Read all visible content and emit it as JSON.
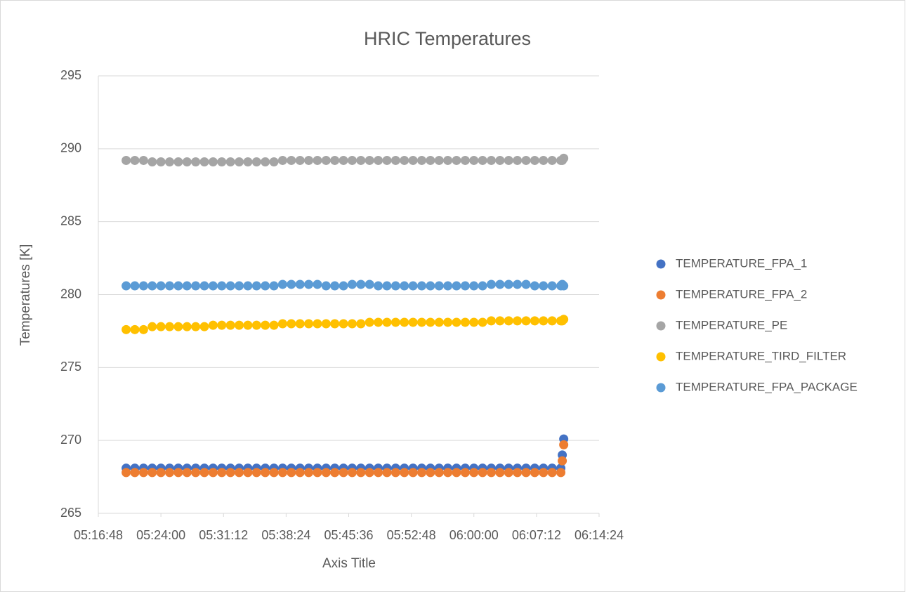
{
  "chart_data": {
    "type": "scatter",
    "title": "HRIC Temperatures",
    "xlabel": "Axis Title",
    "ylabel": "Temperatures [K]",
    "x": [
      "05:20:00",
      "05:21:00",
      "05:22:00",
      "05:23:00",
      "05:24:00",
      "05:25:00",
      "05:26:00",
      "05:27:00",
      "05:28:00",
      "05:29:00",
      "05:30:00",
      "05:31:00",
      "05:32:00",
      "05:33:00",
      "05:34:00",
      "05:35:00",
      "05:36:00",
      "05:37:00",
      "05:38:00",
      "05:39:00",
      "05:40:00",
      "05:41:00",
      "05:42:00",
      "05:43:00",
      "05:44:00",
      "05:45:00",
      "05:46:00",
      "05:47:00",
      "05:48:00",
      "05:49:00",
      "05:50:00",
      "05:51:00",
      "05:52:00",
      "05:53:00",
      "05:54:00",
      "05:55:00",
      "05:56:00",
      "05:57:00",
      "05:58:00",
      "05:59:00",
      "06:00:00",
      "06:01:00",
      "06:02:00",
      "06:03:00",
      "06:04:00",
      "06:05:00",
      "06:06:00",
      "06:07:00",
      "06:08:00",
      "06:09:00",
      "06:10:00",
      "06:10:10",
      "06:10:20"
    ],
    "series": [
      {
        "name": "TEMPERATURE_FPA_1",
        "color": "#4472c4",
        "values": [
          268.1,
          268.1,
          268.1,
          268.1,
          268.1,
          268.1,
          268.1,
          268.1,
          268.1,
          268.1,
          268.1,
          268.1,
          268.1,
          268.1,
          268.1,
          268.1,
          268.1,
          268.1,
          268.1,
          268.1,
          268.1,
          268.1,
          268.1,
          268.1,
          268.1,
          268.1,
          268.1,
          268.1,
          268.1,
          268.1,
          268.1,
          268.1,
          268.1,
          268.1,
          268.1,
          268.1,
          268.1,
          268.1,
          268.1,
          268.1,
          268.1,
          268.1,
          268.1,
          268.1,
          268.1,
          268.1,
          268.1,
          268.1,
          268.1,
          268.1,
          268.1,
          269.0,
          270.1
        ]
      },
      {
        "name": "TEMPERATURE_FPA_2",
        "color": "#ed7d31",
        "values": [
          267.8,
          267.8,
          267.8,
          267.8,
          267.8,
          267.8,
          267.8,
          267.8,
          267.8,
          267.8,
          267.8,
          267.8,
          267.8,
          267.8,
          267.8,
          267.8,
          267.8,
          267.8,
          267.8,
          267.8,
          267.8,
          267.8,
          267.8,
          267.8,
          267.8,
          267.8,
          267.8,
          267.8,
          267.8,
          267.8,
          267.8,
          267.8,
          267.8,
          267.8,
          267.8,
          267.8,
          267.8,
          267.8,
          267.8,
          267.8,
          267.8,
          267.8,
          267.8,
          267.8,
          267.8,
          267.8,
          267.8,
          267.8,
          267.8,
          267.8,
          267.8,
          268.6,
          269.7
        ]
      },
      {
        "name": "TEMPERATURE_PE",
        "color": "#a5a5a5",
        "values": [
          289.2,
          289.2,
          289.2,
          289.1,
          289.1,
          289.1,
          289.1,
          289.1,
          289.1,
          289.1,
          289.1,
          289.1,
          289.1,
          289.1,
          289.1,
          289.1,
          289.1,
          289.1,
          289.2,
          289.2,
          289.2,
          289.2,
          289.2,
          289.2,
          289.2,
          289.2,
          289.2,
          289.2,
          289.2,
          289.2,
          289.2,
          289.2,
          289.2,
          289.2,
          289.2,
          289.2,
          289.2,
          289.2,
          289.2,
          289.2,
          289.2,
          289.2,
          289.2,
          289.2,
          289.2,
          289.2,
          289.2,
          289.2,
          289.2,
          289.2,
          289.2,
          289.2,
          289.35
        ]
      },
      {
        "name": "TEMPERATURE_TIRD_FILTER",
        "color": "#ffc000",
        "values": [
          277.6,
          277.6,
          277.6,
          277.8,
          277.8,
          277.8,
          277.8,
          277.8,
          277.8,
          277.8,
          277.9,
          277.9,
          277.9,
          277.9,
          277.9,
          277.9,
          277.9,
          277.9,
          278.0,
          278.0,
          278.0,
          278.0,
          278.0,
          278.0,
          278.0,
          278.0,
          278.0,
          278.0,
          278.1,
          278.1,
          278.1,
          278.1,
          278.1,
          278.1,
          278.1,
          278.1,
          278.1,
          278.1,
          278.1,
          278.1,
          278.1,
          278.1,
          278.2,
          278.2,
          278.2,
          278.2,
          278.2,
          278.2,
          278.2,
          278.2,
          278.2,
          278.2,
          278.3
        ]
      },
      {
        "name": "TEMPERATURE_FPA_PACKAGE",
        "color": "#5b9bd5",
        "values": [
          280.6,
          280.6,
          280.6,
          280.6,
          280.6,
          280.6,
          280.6,
          280.6,
          280.6,
          280.6,
          280.6,
          280.6,
          280.6,
          280.6,
          280.6,
          280.6,
          280.6,
          280.6,
          280.7,
          280.7,
          280.7,
          280.7,
          280.7,
          280.6,
          280.6,
          280.6,
          280.7,
          280.7,
          280.7,
          280.6,
          280.6,
          280.6,
          280.6,
          280.6,
          280.6,
          280.6,
          280.6,
          280.6,
          280.6,
          280.6,
          280.6,
          280.6,
          280.7,
          280.7,
          280.7,
          280.7,
          280.7,
          280.6,
          280.6,
          280.6,
          280.6,
          280.7,
          280.6
        ]
      }
    ],
    "xlim": [
      "05:16:48",
      "06:14:24"
    ],
    "xticks": [
      "05:16:48",
      "05:24:00",
      "05:31:12",
      "05:38:24",
      "05:45:36",
      "05:52:48",
      "06:00:00",
      "06:07:12",
      "06:14:24"
    ],
    "ylim": [
      265,
      295
    ],
    "yticks": [
      265,
      270,
      275,
      280,
      285,
      290,
      295
    ],
    "grid": true,
    "legend": "right"
  }
}
